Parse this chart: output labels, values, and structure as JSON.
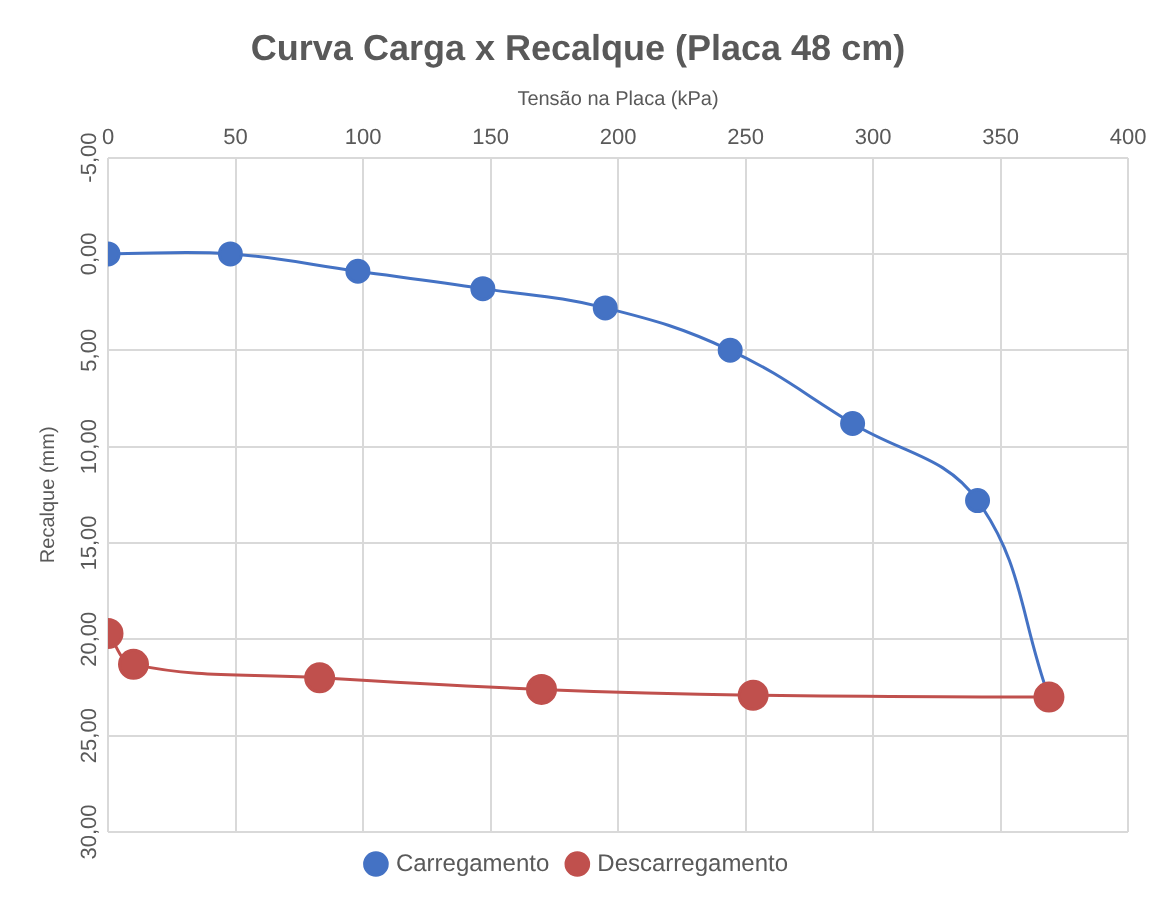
{
  "chart_data": {
    "type": "line",
    "title": "Curva Carga x Recalque (Placa 48 cm)",
    "xlabel": "Tensão na Placa (kPa)",
    "ylabel": "Recalque (mm)",
    "xlim": [
      0,
      400
    ],
    "xticks": [
      0,
      50,
      100,
      150,
      200,
      250,
      300,
      350,
      400
    ],
    "ylim": [
      30,
      -5
    ],
    "yticks": [
      {
        "value": -5,
        "label": "-5,00"
      },
      {
        "value": 0,
        "label": "0,00"
      },
      {
        "value": 5,
        "label": "5,00"
      },
      {
        "value": 10,
        "label": "10,00"
      },
      {
        "value": 15,
        "label": "15,00"
      },
      {
        "value": 20,
        "label": "20,00"
      },
      {
        "value": 25,
        "label": "25,00"
      },
      {
        "value": 30,
        "label": "30,00"
      }
    ],
    "grid": true,
    "legend": "bottom",
    "marker": "circle",
    "line_style": "solid",
    "series": [
      {
        "name": "Carregamento",
        "color": "#4472c4",
        "x": [
          0,
          48,
          98,
          147,
          195,
          244,
          292,
          341,
          369
        ],
        "values": [
          0,
          0,
          0.9,
          1.8,
          2.8,
          5.0,
          8.8,
          12.8,
          23.0
        ]
      },
      {
        "name": "Descarregamento",
        "color": "#c0504d",
        "x": [
          0,
          10,
          83,
          170,
          253,
          369
        ],
        "values": [
          19.7,
          21.3,
          22.0,
          22.6,
          22.9,
          23.0
        ]
      }
    ]
  }
}
